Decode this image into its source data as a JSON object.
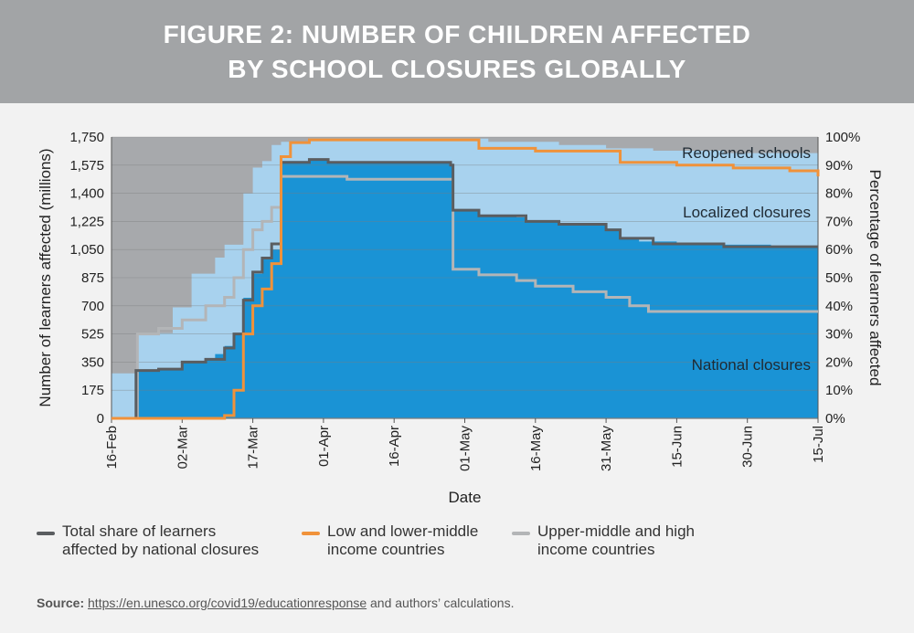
{
  "title_line1": "FIGURE 2: NUMBER OF CHILDREN AFFECTED",
  "title_line2": "BY SCHOOL CLOSURES GLOBALLY",
  "legend": [
    {
      "line1": "Total share of learners",
      "line2": "affected by national closures",
      "color": "#5a5d60"
    },
    {
      "line1": "Low and lower-middle",
      "line2": "income countries",
      "color": "#f0923a"
    },
    {
      "line1": "Upper-middle and high",
      "line2": "income countries",
      "color": "#b3b5b7"
    }
  ],
  "source": {
    "label": "Source:",
    "url": "https://en.unesco.org/covid19/educationresponse",
    "rest": " and authors’ calculations."
  },
  "chart_data": {
    "type": "area",
    "xlabel": "Date",
    "ylabel": "Number of learners affected (millions)",
    "ylabel_right": "Percentage of learners affected",
    "x_ticks": [
      "16-Feb",
      "02-Mar",
      "17-Mar",
      "01-Apr",
      "16-Apr",
      "01-May",
      "16-May",
      "31-May",
      "15-Jun",
      "30-Jun",
      "15-Jul"
    ],
    "x_range_days": [
      0,
      150
    ],
    "ylim": [
      0,
      1750
    ],
    "y_ticks": [
      "0",
      "175",
      "350",
      "525",
      "700",
      "875",
      "1,050",
      "1,225",
      "1,400",
      "1,575",
      "1,750"
    ],
    "y_ticks_right": [
      "0%",
      "10%",
      "20%",
      "30%",
      "40%",
      "50%",
      "60%",
      "70%",
      "80%",
      "90%",
      "100%"
    ],
    "colors": {
      "national": "#1a93d5",
      "localized": "#a8d2ee",
      "reopened": "#a7a9ac",
      "total_line": "#5a5d60",
      "low_income": "#f0923a",
      "high_income": "#b3b5b7"
    },
    "area_labels": {
      "reopened": "Reopened schools",
      "localized": "Localized closures",
      "national": "National closures"
    },
    "series": [
      {
        "name": "National closures (millions)",
        "points": [
          [
            0,
            0
          ],
          [
            5,
            0
          ],
          [
            5.2,
            290
          ],
          [
            10,
            300
          ],
          [
            15,
            350
          ],
          [
            20,
            370
          ],
          [
            22,
            400
          ],
          [
            24,
            450
          ],
          [
            26,
            520
          ],
          [
            28,
            750
          ],
          [
            30,
            900
          ],
          [
            32,
            1000
          ],
          [
            34,
            1050
          ],
          [
            36,
            1600
          ],
          [
            38,
            1600
          ],
          [
            42,
            1610
          ],
          [
            44,
            1610
          ],
          [
            46,
            1590
          ],
          [
            56,
            1590
          ],
          [
            72,
            1580
          ],
          [
            72.5,
            1300
          ],
          [
            78,
            1260
          ],
          [
            86,
            1250
          ],
          [
            88,
            1220
          ],
          [
            95,
            1200
          ],
          [
            105,
            1180
          ],
          [
            108,
            1120
          ],
          [
            112,
            1100
          ],
          [
            120,
            1090
          ],
          [
            130,
            1080
          ],
          [
            140,
            1070
          ],
          [
            150,
            1070
          ]
        ]
      },
      {
        "name": "Localized closures (millions)",
        "points": [
          [
            0,
            280
          ],
          [
            5,
            280
          ],
          [
            5.5,
            520
          ],
          [
            10,
            530
          ],
          [
            13,
            690
          ],
          [
            17,
            900
          ],
          [
            21,
            900
          ],
          [
            22,
            1000
          ],
          [
            24,
            1080
          ],
          [
            28,
            1400
          ],
          [
            30,
            1560
          ],
          [
            32,
            1600
          ],
          [
            34,
            1700
          ],
          [
            36,
            1720
          ],
          [
            38,
            1720
          ],
          [
            42,
            1740
          ],
          [
            70,
            1740
          ],
          [
            80,
            1720
          ],
          [
            95,
            1700
          ],
          [
            105,
            1680
          ],
          [
            115,
            1665
          ],
          [
            130,
            1650
          ],
          [
            150,
            1650
          ]
        ]
      },
      {
        "name": "Reopened schools (millions)",
        "points": [
          [
            0,
            1750
          ],
          [
            70,
            1750
          ],
          [
            80,
            1750
          ],
          [
            90,
            1750
          ],
          [
            100,
            1750
          ],
          [
            110,
            1750
          ],
          [
            120,
            1750
          ],
          [
            130,
            1750
          ],
          [
            140,
            1750
          ],
          [
            150,
            1750
          ]
        ]
      },
      {
        "name": "Total share of learners affected by national closures (%)",
        "points": [
          [
            0,
            0
          ],
          [
            5,
            0
          ],
          [
            5.2,
            17
          ],
          [
            10,
            17.5
          ],
          [
            15,
            20
          ],
          [
            20,
            21
          ],
          [
            24,
            25
          ],
          [
            26,
            30
          ],
          [
            28,
            42
          ],
          [
            30,
            52
          ],
          [
            32,
            57
          ],
          [
            34,
            62
          ],
          [
            36,
            91
          ],
          [
            42,
            92
          ],
          [
            46,
            91
          ],
          [
            72,
            90
          ],
          [
            72.5,
            74
          ],
          [
            78,
            72
          ],
          [
            88,
            70
          ],
          [
            95,
            69
          ],
          [
            105,
            67
          ],
          [
            108,
            64
          ],
          [
            115,
            62
          ],
          [
            130,
            61
          ],
          [
            150,
            61
          ]
        ]
      },
      {
        "name": "Low and lower-middle income countries (%)",
        "points": [
          [
            0,
            0
          ],
          [
            5,
            0
          ],
          [
            8,
            0
          ],
          [
            19,
            0
          ],
          [
            24,
            1
          ],
          [
            26,
            10
          ],
          [
            28,
            30
          ],
          [
            30,
            40
          ],
          [
            32,
            46
          ],
          [
            34,
            55
          ],
          [
            36,
            93
          ],
          [
            38,
            98
          ],
          [
            42,
            99
          ],
          [
            70,
            99
          ],
          [
            78,
            96
          ],
          [
            90,
            95
          ],
          [
            100,
            95
          ],
          [
            108,
            91
          ],
          [
            120,
            90
          ],
          [
            132,
            89
          ],
          [
            144,
            88
          ],
          [
            150,
            86
          ]
        ]
      },
      {
        "name": "Upper-middle and high income countries (%)",
        "points": [
          [
            0,
            0
          ],
          [
            5,
            0
          ],
          [
            5.5,
            30
          ],
          [
            10,
            32
          ],
          [
            15,
            35
          ],
          [
            20,
            40
          ],
          [
            24,
            43
          ],
          [
            26,
            50
          ],
          [
            28,
            60
          ],
          [
            30,
            67
          ],
          [
            32,
            70
          ],
          [
            34,
            75
          ],
          [
            36,
            86
          ],
          [
            46,
            86
          ],
          [
            50,
            85
          ],
          [
            72,
            85
          ],
          [
            72.5,
            53
          ],
          [
            78,
            51
          ],
          [
            86,
            49
          ],
          [
            90,
            47
          ],
          [
            98,
            45
          ],
          [
            105,
            43
          ],
          [
            110,
            40
          ],
          [
            114,
            38
          ],
          [
            130,
            38
          ],
          [
            150,
            38
          ]
        ]
      }
    ]
  }
}
